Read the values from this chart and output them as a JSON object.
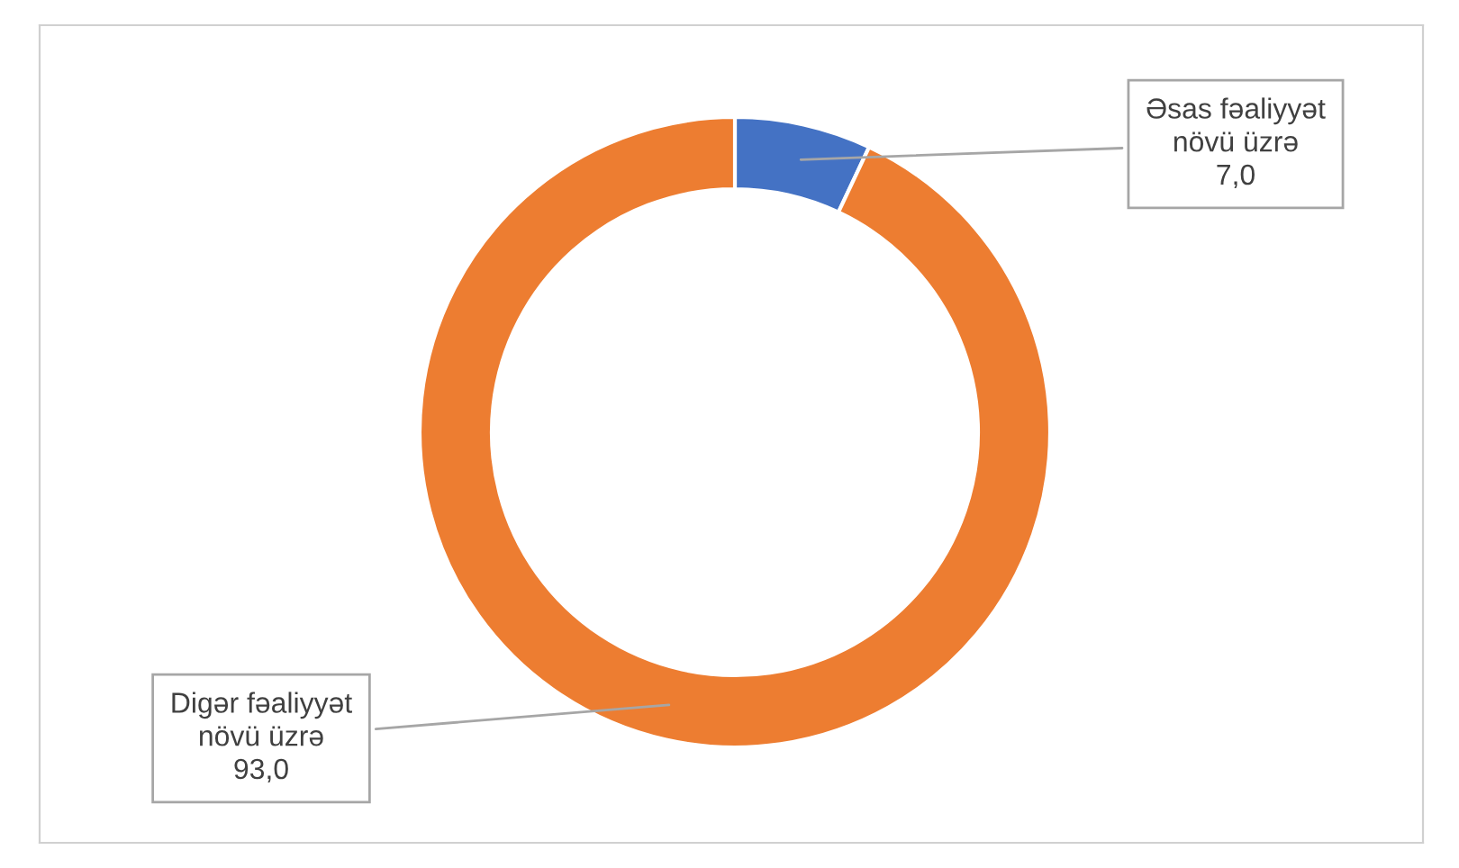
{
  "chart_data": {
    "type": "donut",
    "categories": [
      "Əsas fəaliyyət\nnövü üzrə",
      "Digər fəaliyyət\nnövü üzrə"
    ],
    "values": [
      7.0,
      93.0
    ],
    "value_labels": [
      "7,0",
      "93,0"
    ],
    "colors": [
      "#4472c4",
      "#ed7d31"
    ]
  }
}
